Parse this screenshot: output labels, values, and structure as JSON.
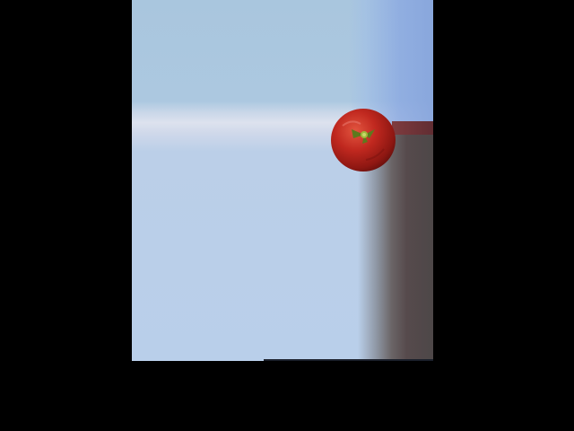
{
  "scene": {
    "background_color": "#000000",
    "panel_color": "#b9cfea",
    "object": "tomato",
    "object_color": "#c0281f",
    "stem_color": "#7d9a2a"
  }
}
